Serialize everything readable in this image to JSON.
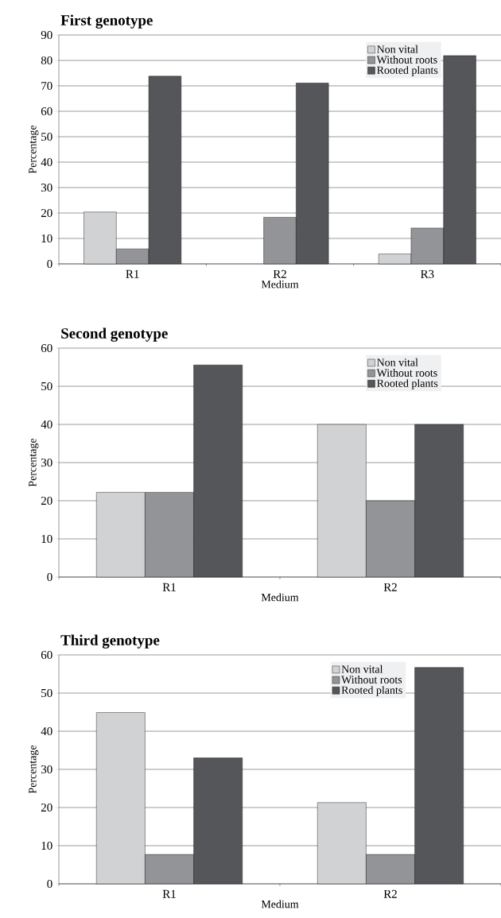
{
  "chart_data": [
    {
      "type": "bar",
      "title": "First genotype",
      "xlabel": "Medium",
      "ylabel": "Percentage",
      "categories": [
        "R1",
        "R2",
        "R3"
      ],
      "series": [
        {
          "name": "Non vital",
          "color": "#d1d2d4",
          "values": [
            20.4,
            null,
            3.9
          ]
        },
        {
          "name": "Without roots",
          "color": "#939498",
          "values": [
            5.9,
            18.3,
            14.1
          ]
        },
        {
          "name": "Rooted plants",
          "color": "#555659",
          "values": [
            73.8,
            71.1,
            81.9
          ]
        }
      ],
      "ylim": [
        0,
        90
      ],
      "yticks": [
        0,
        10,
        20,
        30,
        40,
        50,
        60,
        70,
        80,
        90
      ],
      "grid": "y",
      "legend": "top right"
    },
    {
      "type": "bar",
      "title": "Second genotype",
      "xlabel": "Medium",
      "ylabel": "Percentage",
      "categories": [
        "R1",
        "R2"
      ],
      "series": [
        {
          "name": "Non vital",
          "color": "#d1d2d4",
          "values": [
            22.2,
            40
          ]
        },
        {
          "name": "Without roots",
          "color": "#939498",
          "values": [
            22.2,
            20
          ]
        },
        {
          "name": "Rooted plants",
          "color": "#555659",
          "values": [
            55.6,
            40
          ]
        }
      ],
      "ylim": [
        0,
        60
      ],
      "yticks": [
        0,
        10,
        20,
        30,
        40,
        50,
        60
      ],
      "grid": "y",
      "legend": "top right"
    },
    {
      "type": "bar",
      "title": "Third genotype",
      "xlabel": "Medium",
      "ylabel": "Percentage",
      "categories": [
        "R1",
        "R2"
      ],
      "series": [
        {
          "name": "Non vital",
          "color": "#d1d2d4",
          "values": [
            44.9,
            21.3
          ]
        },
        {
          "name": "Without roots",
          "color": "#939498",
          "values": [
            7.7,
            7.7
          ]
        },
        {
          "name": "Rooted plants",
          "color": "#555659",
          "values": [
            33.0,
            56.7
          ]
        }
      ],
      "ylim": [
        0,
        60
      ],
      "yticks": [
        0,
        10,
        20,
        30,
        40,
        50,
        60
      ],
      "grid": "y",
      "legend": "top right"
    }
  ]
}
